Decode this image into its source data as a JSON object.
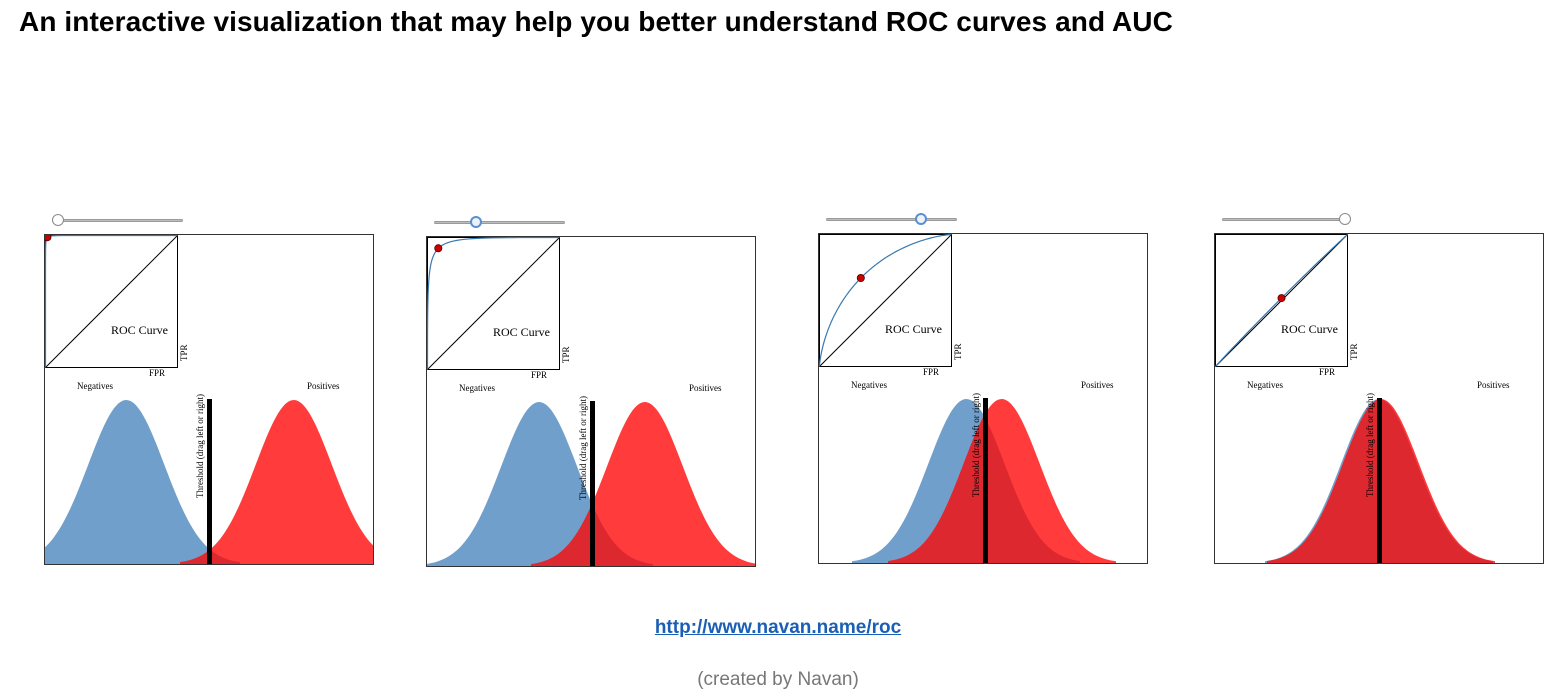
{
  "page": {
    "title": "An interactive visualization that may help you better understand ROC curves and AUC",
    "link_text": "http://www.navan.name/roc",
    "credit": "(created by Navan)"
  },
  "labels": {
    "roc_curve": "ROC Curve",
    "tpr": "TPR",
    "fpr": "FPR",
    "negatives": "Negatives",
    "positives": "Positives",
    "threshold": "Threshold (drag left or right)"
  },
  "colors": {
    "negatives": "#6f9fca",
    "positives": "#ff3b3b",
    "overlap": "#dd2830",
    "roc_line": "#3a78b0",
    "point": "#cc0000"
  },
  "panels": [
    {
      "slider_value": 0.0,
      "slider_state": "idle"
    },
    {
      "slider_value": 0.3,
      "slider_state": "active"
    },
    {
      "slider_value": 0.75,
      "slider_state": "active"
    },
    {
      "slider_value": 1.0,
      "slider_state": "idle"
    }
  ]
}
